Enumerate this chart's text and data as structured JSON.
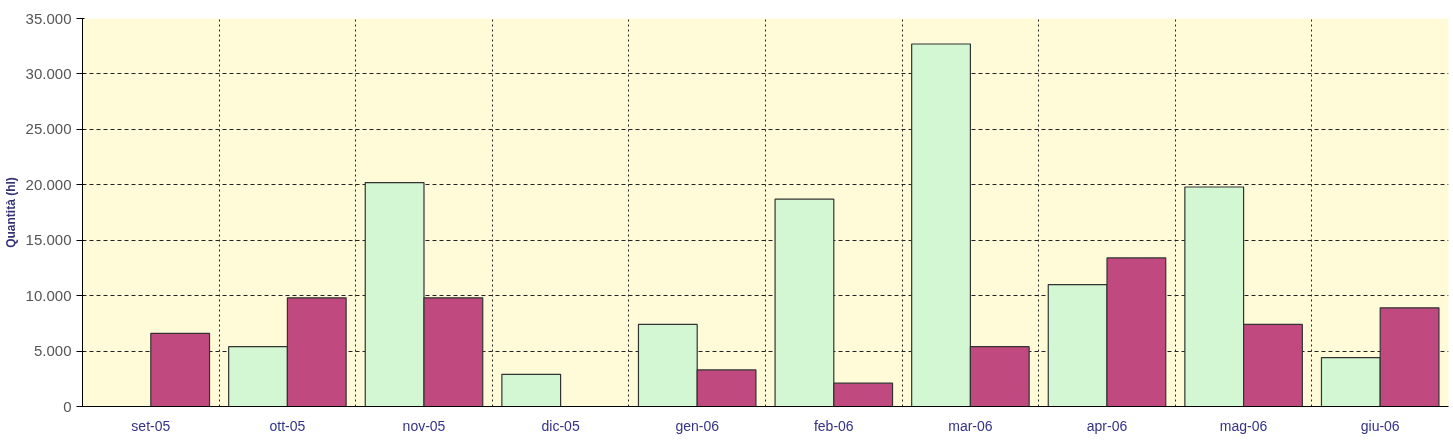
{
  "chart_data": {
    "type": "bar",
    "ylabel": "Quantità (hl)",
    "categories": [
      "set-05",
      "ott-05",
      "nov-05",
      "dic-05",
      "gen-06",
      "feb-06",
      "mar-06",
      "apr-06",
      "mag-06",
      "giu-06"
    ],
    "series": [
      {
        "color": "#d2f7d2",
        "values": [
          null,
          5400,
          20200,
          2900,
          7400,
          18700,
          32700,
          11000,
          19800,
          4400
        ]
      },
      {
        "color": "#c04a80",
        "values": [
          6600,
          9800,
          9800,
          null,
          3300,
          2100,
          5400,
          13400,
          7400,
          8900
        ]
      }
    ],
    "ylim": [
      0,
      35000
    ],
    "yticks": [
      {
        "value": 0,
        "label": "0"
      },
      {
        "value": 5000,
        "label": "5.000"
      },
      {
        "value": 10000,
        "label": "10.000"
      },
      {
        "value": 15000,
        "label": "15.000"
      },
      {
        "value": 20000,
        "label": "20.000"
      },
      {
        "value": 25000,
        "label": "25.000"
      },
      {
        "value": 30000,
        "label": "30.000"
      },
      {
        "value": 35000,
        "label": "35.000"
      }
    ],
    "grid": true
  }
}
